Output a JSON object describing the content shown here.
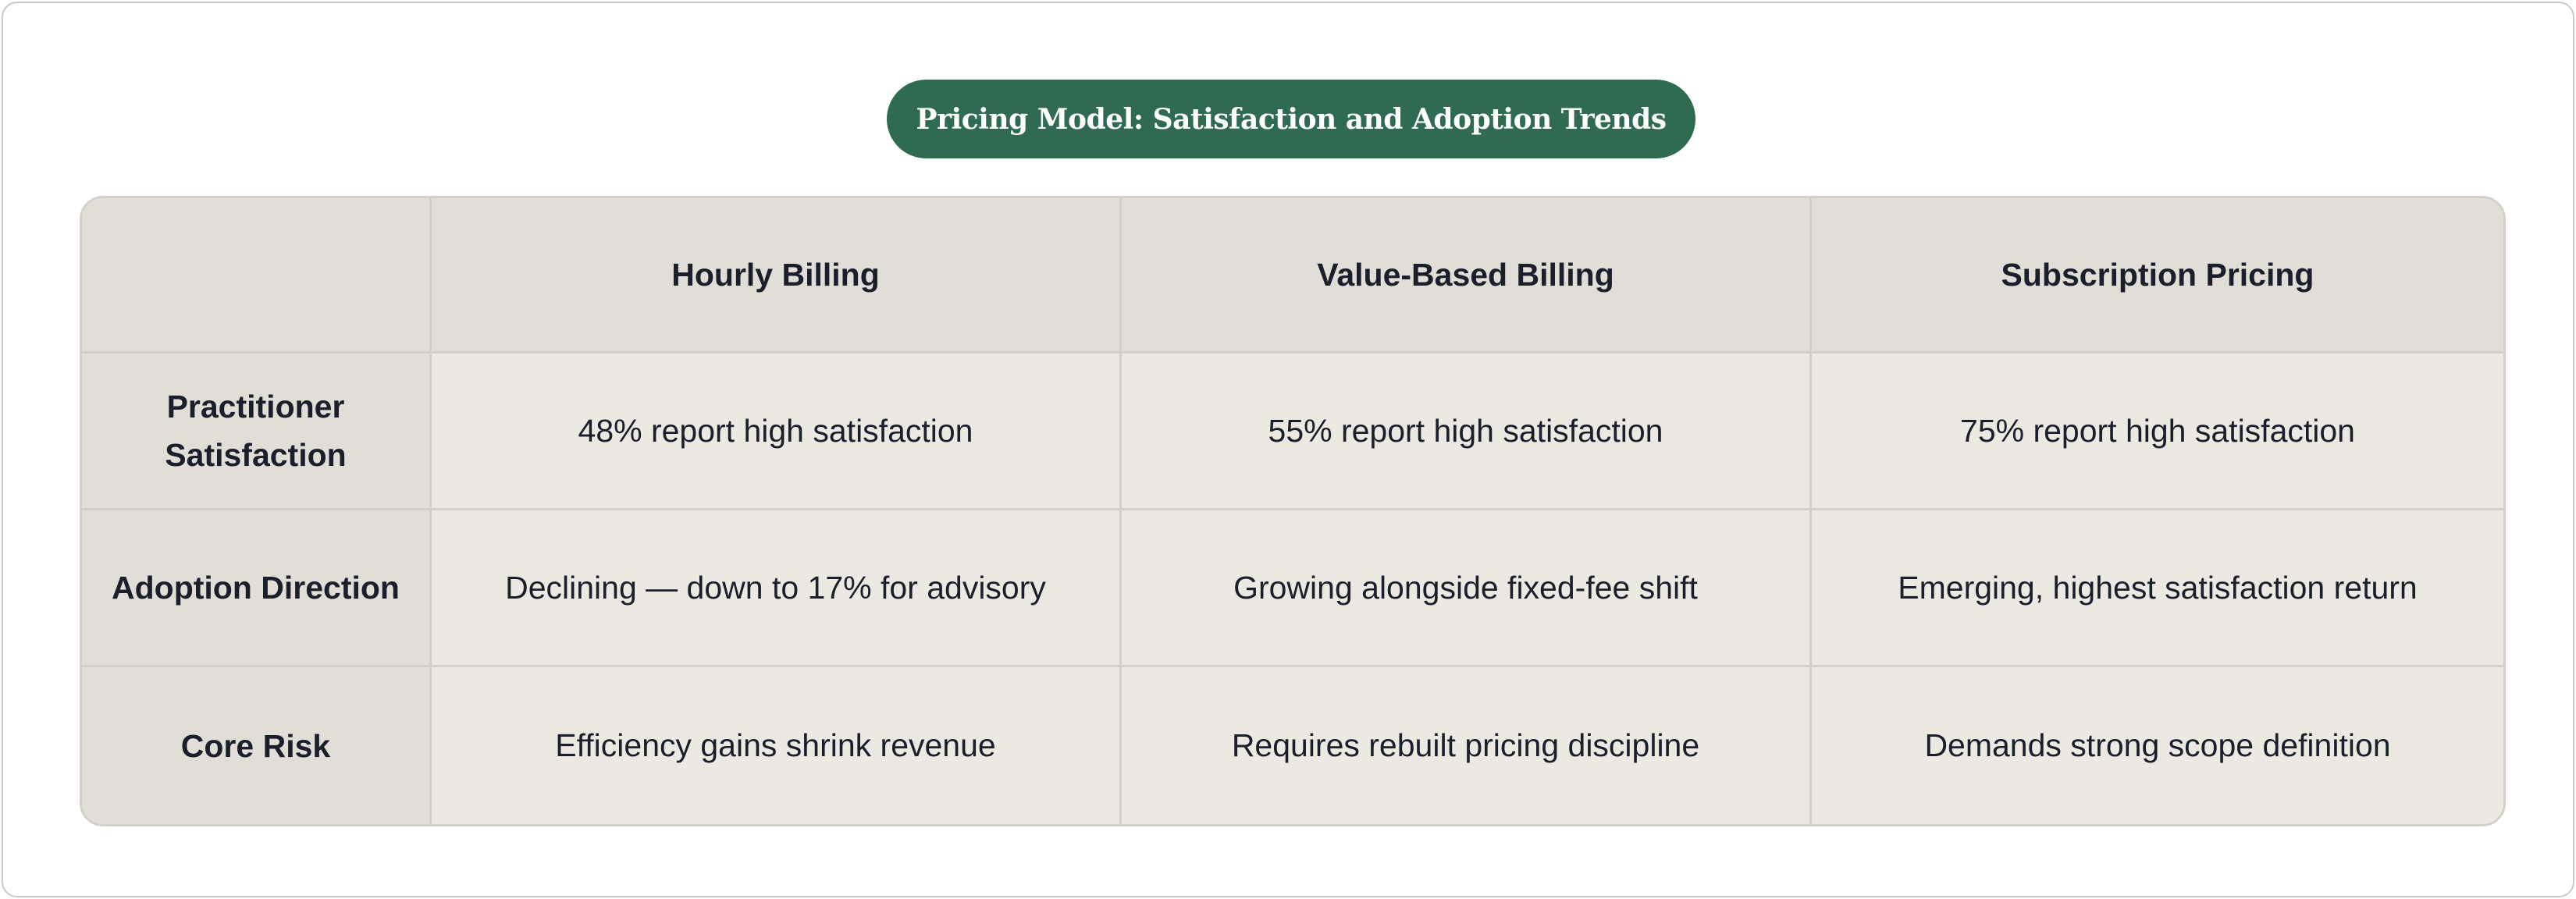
{
  "title": "Pricing Model: Satisfaction and Adoption Trends",
  "columns": [
    "",
    "Hourly Billing",
    "Value-Based Billing",
    "Subscription Pricing"
  ],
  "rows": [
    {
      "label": "Practitioner Satisfaction",
      "cells": [
        "48% report high satisfaction",
        "55% report high satisfaction",
        "75% report high satisfaction"
      ]
    },
    {
      "label": "Adoption Direction",
      "cells": [
        "Declining — down to 17% for advisory",
        "Growing alongside fixed-fee shift",
        "Emerging, highest satisfaction return"
      ]
    },
    {
      "label": "Core Risk",
      "cells": [
        "Efficiency gains shrink revenue",
        "Requires rebuilt pricing discipline",
        "Demands strong scope definition"
      ]
    }
  ],
  "colors": {
    "title_pill": "#2e6b50",
    "header_bg": "#e1ded8",
    "cell_bg": "#ece9e3",
    "text": "#1a1f2b"
  }
}
